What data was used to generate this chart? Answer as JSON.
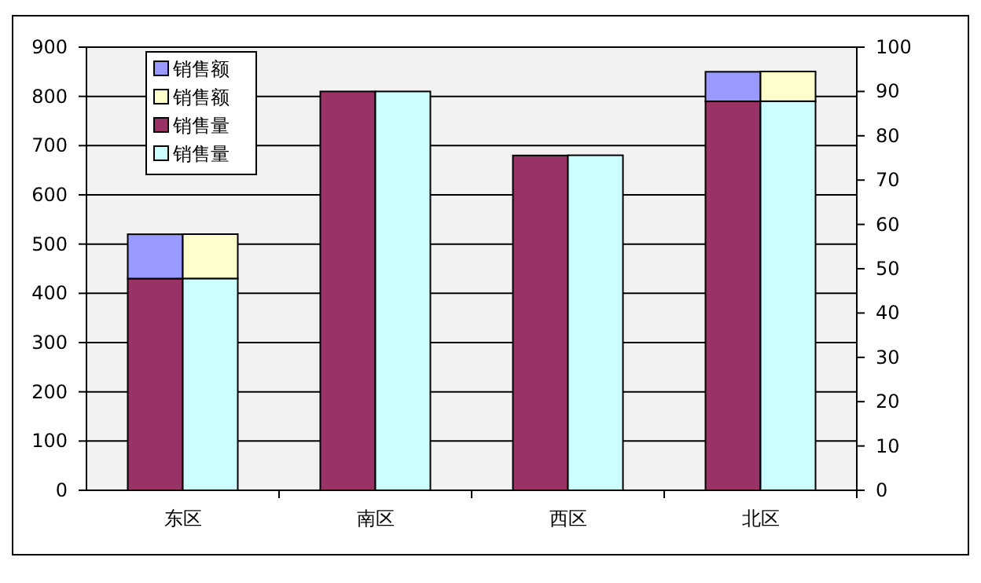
{
  "chart_data": {
    "type": "bar",
    "stacked": true,
    "categories": [
      "东区",
      "南区",
      "西区",
      "北区"
    ],
    "series": [
      {
        "name": "销售量",
        "color": "#993366",
        "values": [
          430,
          810,
          680,
          790
        ]
      },
      {
        "name": "销售额",
        "color": "#9999ff",
        "values": [
          90,
          0,
          0,
          60
        ]
      },
      {
        "name": "销售量",
        "color": "#ccffff",
        "axis": "y2",
        "values": [
          47.8,
          90,
          75.6,
          87.8
        ]
      },
      {
        "name": "销售额",
        "color": "#ffffcc",
        "axis": "y2",
        "values": [
          10,
          0,
          0,
          6.7
        ]
      }
    ],
    "ylim": [
      0,
      900
    ],
    "yticks": [
      0,
      100,
      200,
      300,
      400,
      500,
      600,
      700,
      800,
      900
    ],
    "y2lim": [
      0,
      100
    ],
    "y2ticks": [
      0,
      10,
      20,
      30,
      40,
      50,
      60,
      70,
      80,
      90,
      100
    ],
    "grid": "y",
    "legend": "top left"
  }
}
